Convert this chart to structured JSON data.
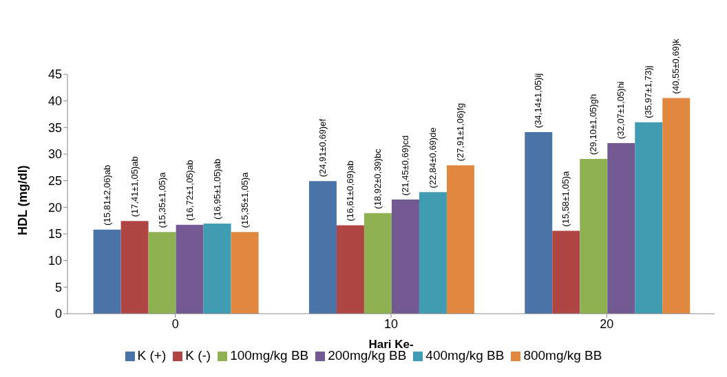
{
  "chart_data": {
    "type": "bar",
    "xlabel": "Hari Ke-",
    "ylabel": "HDL (mg/dl)",
    "categories": [
      "0",
      "10",
      "20"
    ],
    "ylim": [
      0,
      45
    ],
    "yticks": [
      0,
      5,
      10,
      15,
      20,
      25,
      30,
      35,
      40,
      45
    ],
    "grid": false,
    "legend": "bottom",
    "series": [
      {
        "name": "K (+)",
        "color": "#4a73a8",
        "values": [
          15.81,
          24.91,
          34.14
        ],
        "value_labels": [
          "(15,81±2,06)ab",
          "(24,91±0,69)ef",
          "(34,14±1,05)ij"
        ]
      },
      {
        "name": "K (-)",
        "color": "#b04644",
        "values": [
          17.41,
          16.61,
          15.58
        ],
        "value_labels": [
          "(17,41±1,05)ab",
          "(16,61±0,69)ab",
          "(15,58±1,05)a"
        ]
      },
      {
        "name": "100mg/kg BB",
        "color": "#8fb152",
        "values": [
          15.35,
          18.92,
          29.1
        ],
        "value_labels": [
          "(15,35±1,05)a",
          "(18,92±0,39)bc",
          "(29,10±1,05)gh"
        ]
      },
      {
        "name": "200mg/kg BB",
        "color": "#735a92",
        "values": [
          16.72,
          21.45,
          32.07
        ],
        "value_labels": [
          "(16,72±1,05)ab",
          "(21,45±0,69)cd",
          "(32,07±1,05)hi"
        ]
      },
      {
        "name": "400mg/kg BB",
        "color": "#409cb2",
        "values": [
          16.95,
          22.84,
          35.97
        ],
        "value_labels": [
          "(16,95±1,05)ab",
          "(22,84±0,69)de",
          "(35,97±1,73)j"
        ]
      },
      {
        "name": "800mg/kg BB",
        "color": "#e08840",
        "values": [
          15.35,
          27.91,
          40.55
        ],
        "value_labels": [
          "(15,35±1,05)a",
          "(27,91±1,06)fg",
          "(40,55±0,69)k"
        ]
      }
    ]
  }
}
